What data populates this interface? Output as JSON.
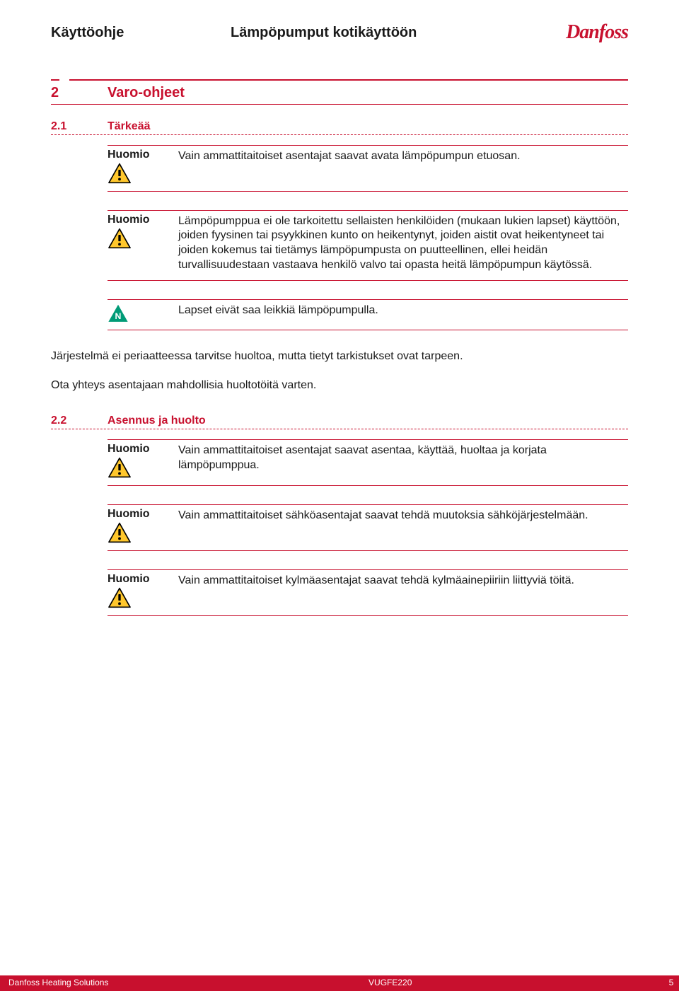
{
  "header": {
    "doc_type": "Käyttöohje",
    "title": "Lämpöpumput kotikäyttöön",
    "brand": "Danfoss",
    "brand_color": "#c8102e"
  },
  "section": {
    "number": "2",
    "title": "Varo-ohjeet"
  },
  "subsection1": {
    "number": "2.1",
    "title": "Tärkeää"
  },
  "notices1": [
    {
      "label": "Huomio",
      "icon": "caution",
      "text": "Vain ammattitaitoiset asentajat saavat avata lämpöpumpun etuosan."
    },
    {
      "label": "Huomio",
      "icon": "caution",
      "text": "Lämpöpumppua ei ole tarkoitettu sellaisten henkilöiden (mukaan lukien lapset) käyttöön, joiden fyysinen tai psyykkinen kunto on heikentynyt, joiden aistit ovat heikentyneet tai joiden kokemus tai tietämys lämpöpumpusta on puutteellinen, ellei heidän turvallisuudestaan vastaava henkilö valvo tai opasta heitä lämpöpumpun käytössä."
    },
    {
      "label": "",
      "icon": "note",
      "text": "Lapset eivät saa leikkiä lämpöpumpulla."
    }
  ],
  "body": {
    "p1": "Järjestelmä ei periaatteessa tarvitse huoltoa, mutta tietyt tarkistukset ovat tarpeen.",
    "p2": "Ota yhteys asentajaan mahdollisia huoltotöitä varten."
  },
  "subsection2": {
    "number": "2.2",
    "title": "Asennus ja huolto"
  },
  "notices2": [
    {
      "label": "Huomio",
      "icon": "caution",
      "text": "Vain ammattitaitoiset asentajat saavat asentaa, käyttää, huoltaa ja korjata lämpöpumppua."
    },
    {
      "label": "Huomio",
      "icon": "caution",
      "text": "Vain ammattitaitoiset sähköasentajat saavat tehdä muutoksia sähköjärjestelmään."
    },
    {
      "label": "Huomio",
      "icon": "caution",
      "text": "Vain ammattitaitoiset kylmäasentajat saavat tehdä kylmäainepiiriin liittyviä töitä."
    }
  ],
  "footer": {
    "left": "Danfoss Heating Solutions",
    "mid": "VUGFE220",
    "page": "5"
  },
  "colors": {
    "accent": "#c8102e",
    "text": "#1a1a1a",
    "caution_yellow": "#ffc72c",
    "note_green": "#009b77"
  }
}
